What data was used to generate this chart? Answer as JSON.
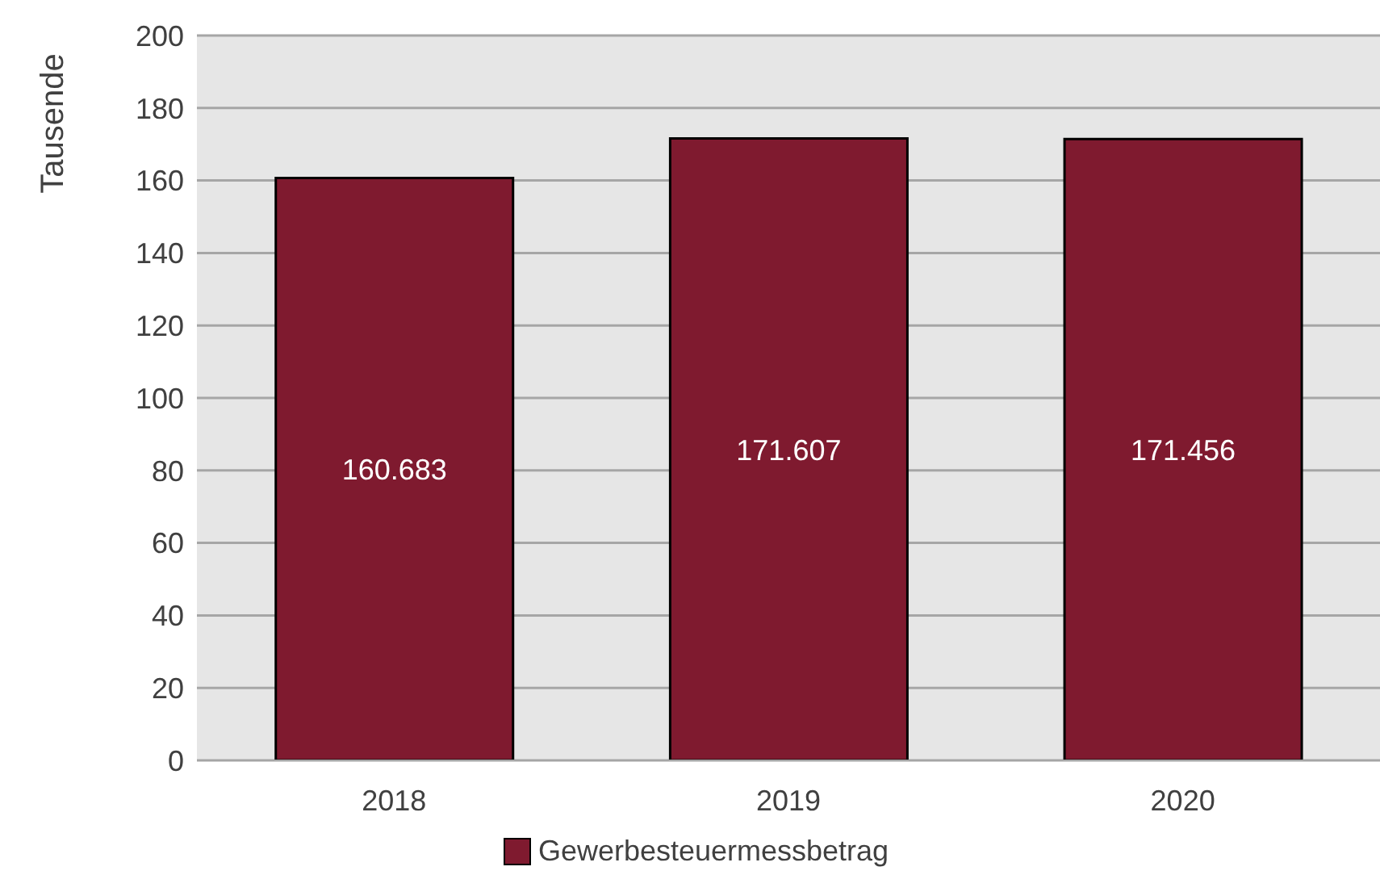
{
  "chart_data": {
    "type": "bar",
    "ylabel": "Tausende",
    "categories": [
      "2018",
      "2019",
      "2020"
    ],
    "series": [
      {
        "name": "Gewerbesteuermessbetrag",
        "color": "#7f1a2f",
        "values": [
          160.683,
          171.607,
          171.456
        ]
      }
    ],
    "ylim": [
      0,
      200
    ],
    "yticks": [
      0,
      20,
      40,
      60,
      80,
      100,
      120,
      140,
      160,
      180,
      200
    ],
    "grid": "y",
    "legend": "bottom",
    "data_labels": true
  }
}
